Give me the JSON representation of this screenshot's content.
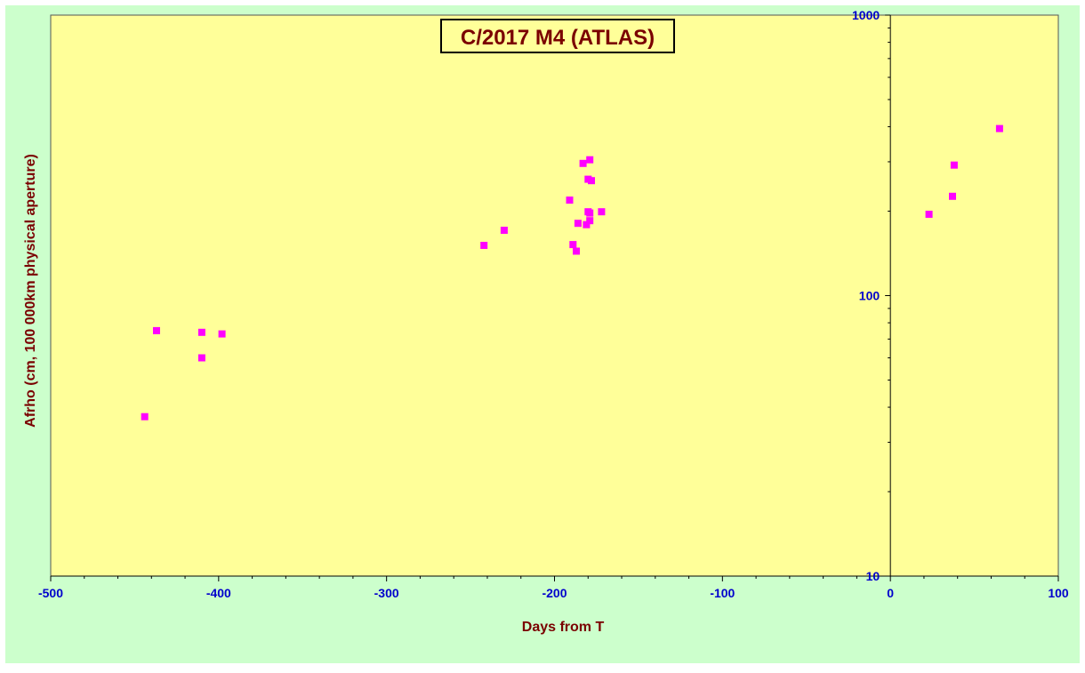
{
  "chart_data": {
    "type": "scatter",
    "title": "C/2017 M4 (ATLAS)",
    "xlabel": "Days from T",
    "ylabel": "Afrho (cm, 100 000km physical aperture)",
    "xlim": [
      -500,
      100
    ],
    "ylim": [
      10,
      1000
    ],
    "y_scale": "log",
    "x_ticks": [
      -500,
      -400,
      -300,
      -200,
      -100,
      0,
      100
    ],
    "y_ticks": [
      10,
      100,
      1000
    ],
    "grid": false,
    "legend": "none",
    "series": [
      {
        "x": [
          -444,
          -437,
          -410,
          -410,
          -398,
          -242,
          -230,
          -191,
          -189,
          -187,
          -186,
          -183,
          -181,
          -180,
          -180,
          -179,
          -179,
          -179,
          -178,
          -172,
          23,
          37,
          38,
          65
        ],
        "y": [
          37,
          75,
          74,
          60,
          73,
          151,
          171,
          219,
          152,
          144,
          181,
          296,
          179,
          199,
          260,
          185,
          197,
          305,
          257,
          199,
          195,
          226,
          292,
          394
        ]
      }
    ]
  },
  "colors": {
    "background": "#ccffcc",
    "plot_area": "#ffff99",
    "marker": "#ff00ff",
    "tick_labels": "#0000cc",
    "axis_titles": "#7a0000",
    "title_box_fill": "#ffff99",
    "axes": "#000000"
  }
}
